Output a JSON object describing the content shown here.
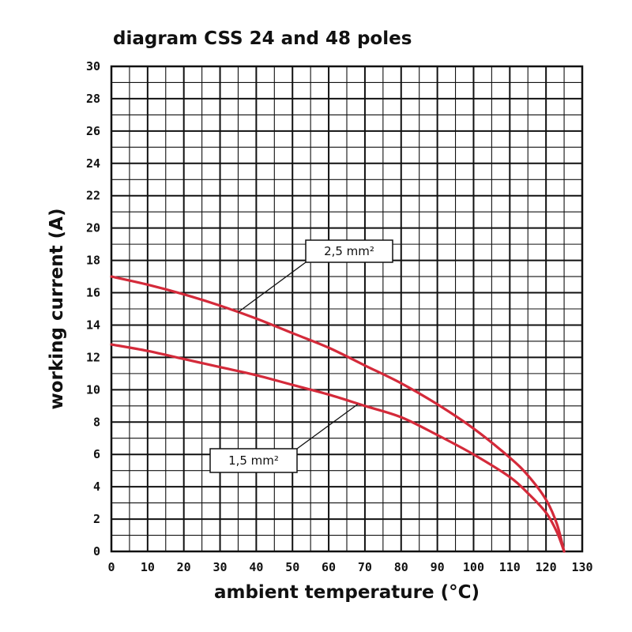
{
  "chart_data": {
    "type": "line",
    "title": "diagram CSS 24 and 48 poles",
    "xlabel": "ambient temperature (°C)",
    "ylabel": "working current (A)",
    "xlim": [
      0,
      130
    ],
    "ylim": [
      0,
      30
    ],
    "x_ticks": [
      0,
      10,
      20,
      30,
      40,
      50,
      60,
      70,
      80,
      90,
      100,
      110,
      120,
      130
    ],
    "y_ticks": [
      0,
      2,
      4,
      6,
      8,
      10,
      12,
      14,
      16,
      18,
      20,
      22,
      24,
      26,
      28,
      30
    ],
    "grid": true,
    "colors": {
      "curve": "#d42a3a",
      "grid": "#111111"
    },
    "series": [
      {
        "name": "2,5 mm²",
        "x": [
          0,
          10,
          20,
          30,
          40,
          50,
          60,
          70,
          80,
          90,
          100,
          110,
          115,
          120,
          123,
          125
        ],
        "y": [
          17.0,
          16.5,
          15.9,
          15.2,
          14.4,
          13.5,
          12.6,
          11.5,
          10.4,
          9.1,
          7.6,
          5.8,
          4.7,
          3.2,
          1.7,
          0
        ]
      },
      {
        "name": "1,5 mm²",
        "x": [
          0,
          10,
          20,
          30,
          40,
          50,
          60,
          70,
          80,
          90,
          100,
          110,
          115,
          120,
          123,
          125
        ],
        "y": [
          12.8,
          12.4,
          11.9,
          11.4,
          10.9,
          10.3,
          9.7,
          9.0,
          8.3,
          7.2,
          6.0,
          4.6,
          3.6,
          2.4,
          1.2,
          0
        ]
      }
    ],
    "annotations": [
      {
        "text": "2,5 mm²",
        "series": 0,
        "point": [
          35,
          14.8
        ]
      },
      {
        "text": "1,5 mm²",
        "series": 1,
        "point": [
          68,
          9.1
        ]
      }
    ]
  }
}
